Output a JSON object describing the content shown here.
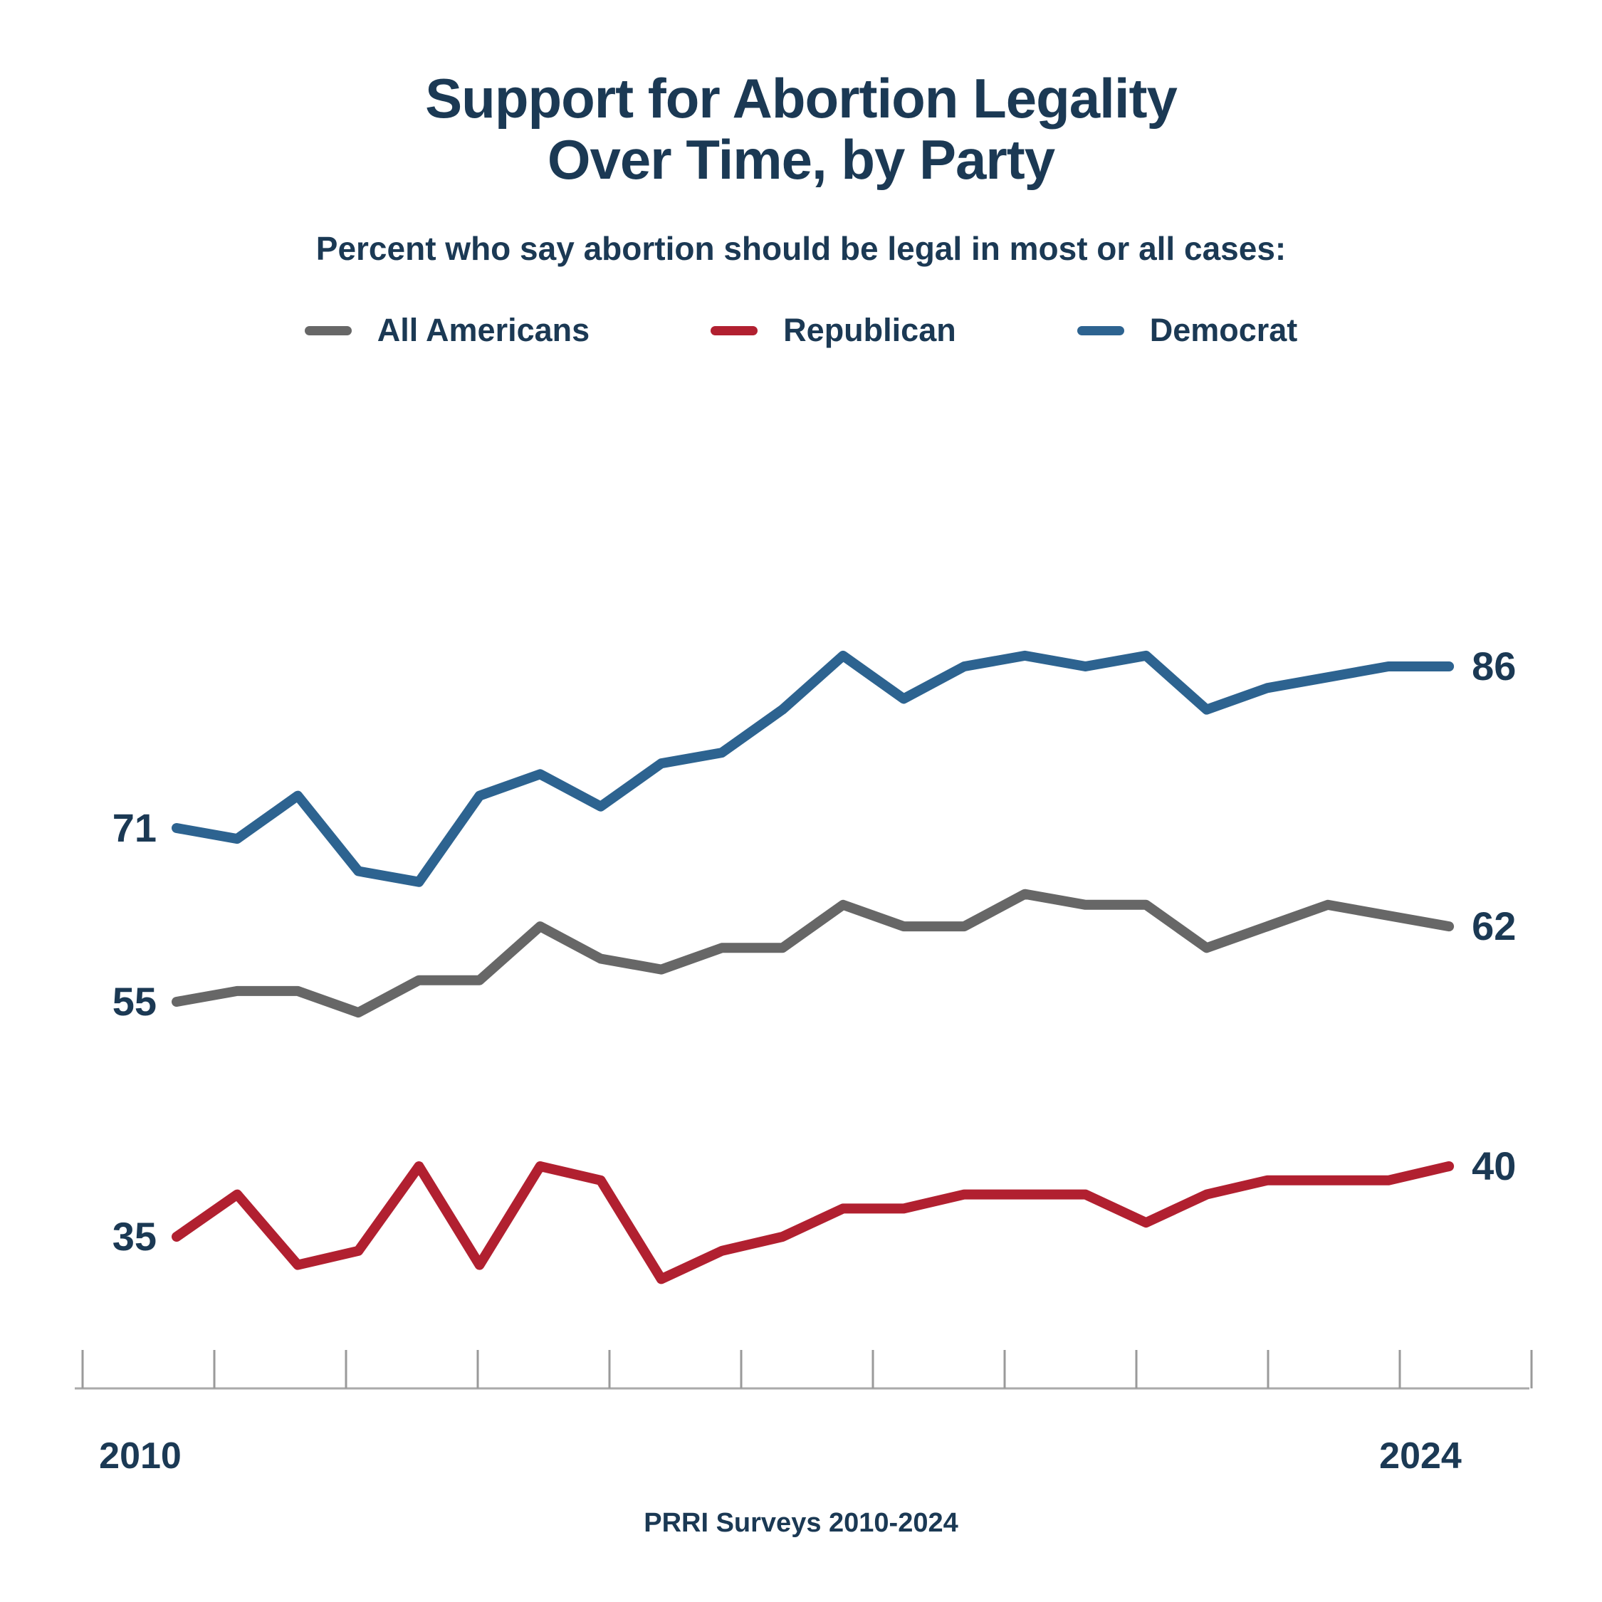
{
  "page": {
    "background": "#ffffff"
  },
  "header": {
    "title_lines": [
      "Support for Abortion Legality",
      "Over Time, by Party"
    ],
    "subtitle": "Percent who say abortion should be legal in most or all cases:"
  },
  "footer": {
    "source": "PRRI Surveys 2010-2024"
  },
  "chart_data": {
    "type": "line",
    "title": "Support for Abortion Legality Over Time, by Party",
    "subtitle": "Percent who say abortion should be legal in most or all cases:",
    "grid": false,
    "legend_position": "top",
    "x_axis": {
      "start_label": "2010",
      "end_label": "2024",
      "range": [
        2010,
        2024
      ],
      "tick_count": 12,
      "only_endpoints_labeled": true
    },
    "y_axis": {
      "visible": false,
      "unit": "percent"
    },
    "series": [
      {
        "name": "All Americans",
        "color": "#676767",
        "start_label": "55",
        "end_label": "62",
        "values": [
          55,
          56,
          56,
          54,
          57,
          57,
          62,
          59,
          58,
          60,
          60,
          64,
          62,
          62,
          65,
          64,
          64,
          60,
          62,
          64,
          63,
          62
        ]
      },
      {
        "name": "Republican",
        "color": "#b12030",
        "start_label": "35",
        "end_label": "40",
        "values": [
          35,
          38,
          33,
          34,
          40,
          33,
          40,
          39,
          32,
          34,
          35,
          37,
          37,
          38,
          38,
          38,
          36,
          38,
          39,
          39,
          39,
          40
        ]
      },
      {
        "name": "Democrat",
        "color": "#2d6390",
        "start_label": "71",
        "end_label": "86",
        "values": [
          71,
          70,
          74,
          67,
          66,
          74,
          76,
          73,
          77,
          78,
          82,
          87,
          83,
          86,
          87,
          86,
          87,
          82,
          84,
          85,
          86,
          86
        ]
      }
    ],
    "source": "PRRI Surveys 2010-2024"
  }
}
